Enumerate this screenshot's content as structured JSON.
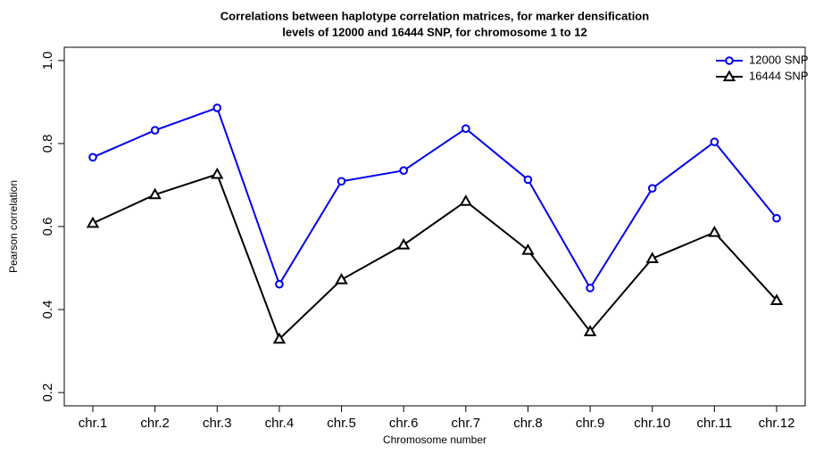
{
  "chart_data": {
    "type": "line",
    "title": [
      "Correlations between haplotype correlation matrices, for marker densification",
      "levels of 12000 and 16444 SNP, for chromosome 1 to 12"
    ],
    "x_label": "Chromosome number",
    "y_label": "Pearson correlation",
    "categories": [
      "chr.1",
      "chr.2",
      "chr.3",
      "chr.4",
      "chr.5",
      "chr.6",
      "chr.7",
      "chr.8",
      "chr.9",
      "chr.10",
      "chr.11",
      "chr.12"
    ],
    "series": [
      {
        "name": "12000 SNP",
        "color": "#0000ee",
        "marker": "circle",
        "values": [
          0.767,
          0.832,
          0.886,
          0.461,
          0.709,
          0.735,
          0.836,
          0.713,
          0.452,
          0.692,
          0.804,
          0.62
        ]
      },
      {
        "name": "16444 SNP",
        "color": "#000000",
        "marker": "triangle",
        "values": [
          0.608,
          0.677,
          0.726,
          0.329,
          0.472,
          0.556,
          0.661,
          0.543,
          0.347,
          0.523,
          0.586,
          0.422
        ]
      }
    ],
    "ylim": [
      0.168,
      1.032
    ],
    "yticks": [
      0.2,
      0.4,
      0.6,
      0.8,
      {
        "value": 1,
        "label": "1.0"
      }
    ],
    "legend": "top-right",
    "grid": false
  }
}
